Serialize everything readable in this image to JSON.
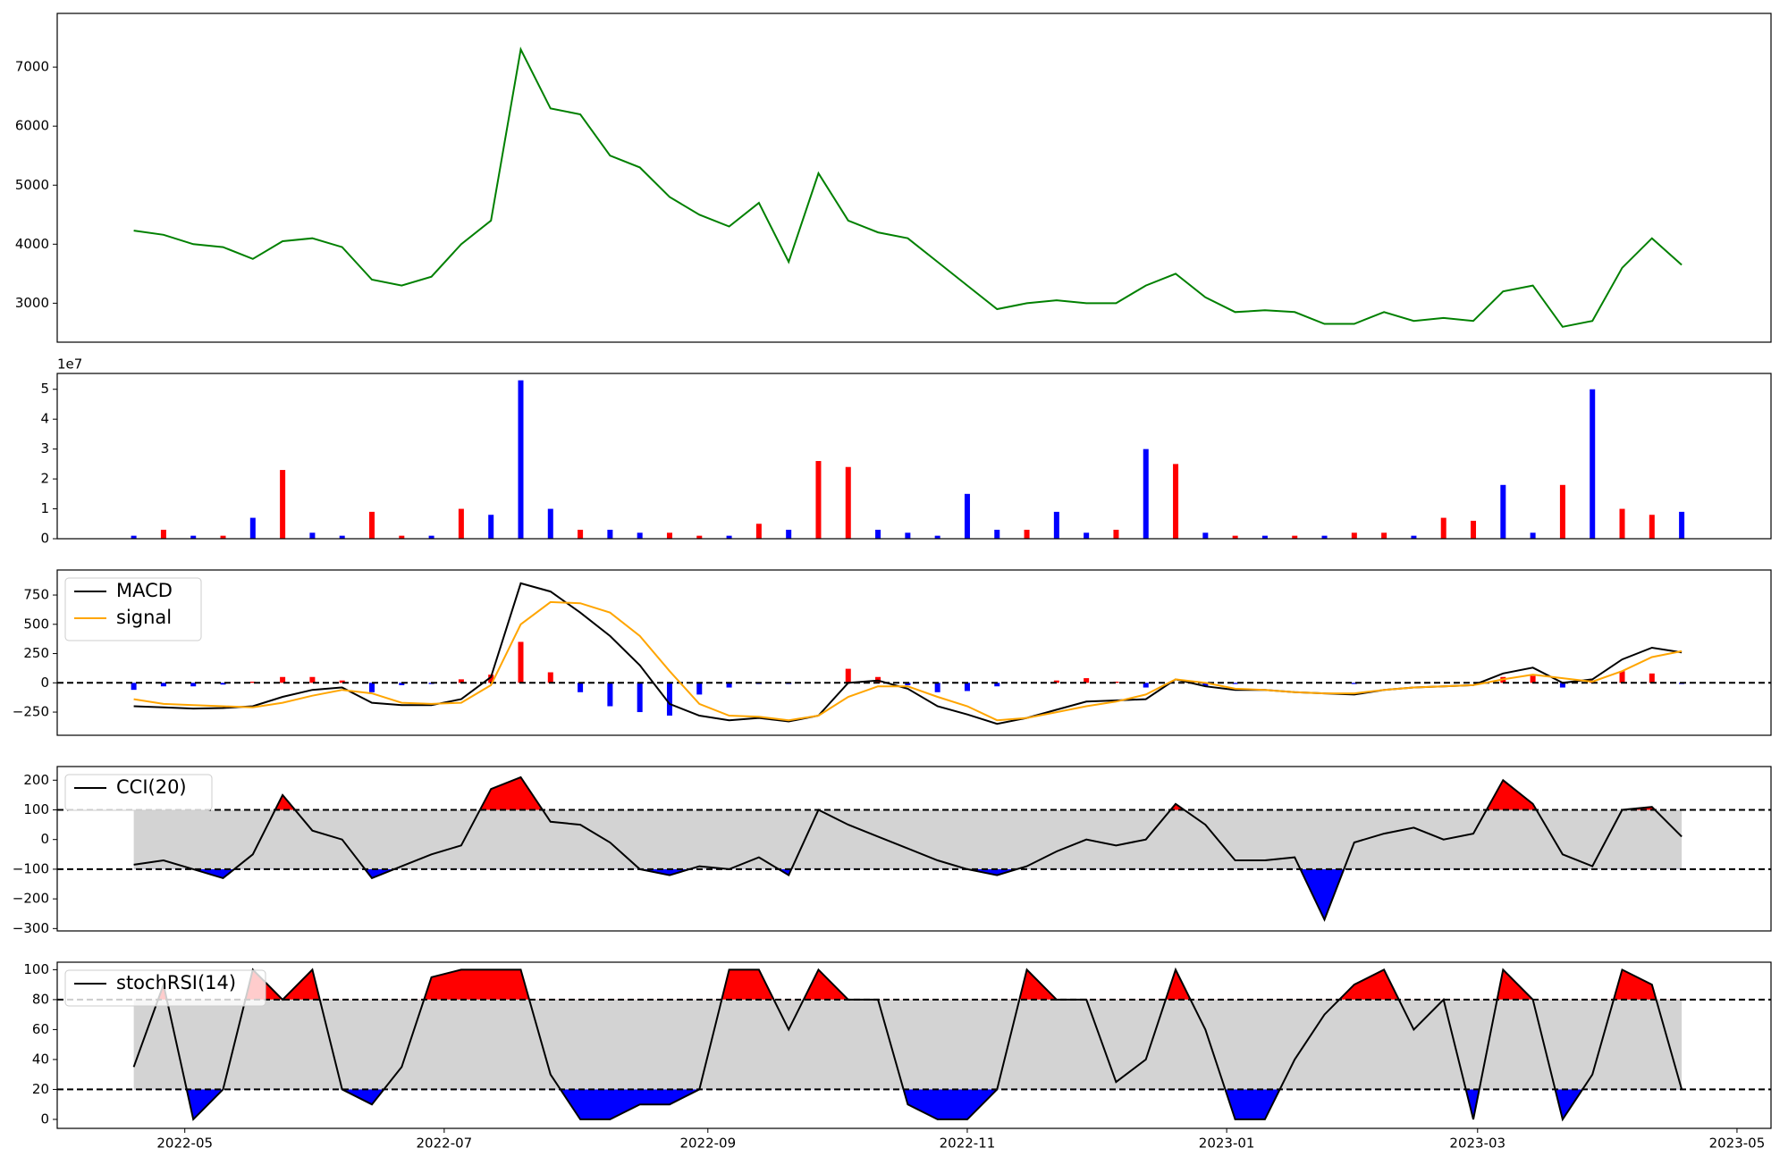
{
  "chart_data": [
    {
      "type": "line",
      "color": "#008000",
      "values": [
        4230,
        4160,
        4000,
        3950,
        3750,
        4050,
        4100,
        3950,
        3400,
        3300,
        3450,
        4000,
        4400,
        7300,
        6300,
        6200,
        5500,
        5300,
        4800,
        4500,
        4300,
        4700,
        3700,
        5200,
        4400,
        4200,
        4100,
        3700,
        3300,
        2900,
        3000,
        3050,
        3000,
        3000,
        3300,
        3500,
        3100,
        2850,
        2880,
        2850,
        2650,
        2650,
        2850,
        2700,
        2750,
        2700,
        3200,
        3300,
        2600,
        2700,
        3600,
        4100,
        3650
      ],
      "ylim": [
        2340,
        7910
      ],
      "yticks": [
        3000,
        4000,
        5000,
        6000,
        7000
      ]
    },
    {
      "type": "bar",
      "offset_label": "1e7",
      "values": [
        0.1,
        0.3,
        0.1,
        0.1,
        0.7,
        2.3,
        0.2,
        0.1,
        0.9,
        0.1,
        0.1,
        1.0,
        0.8,
        5.3,
        1.0,
        0.3,
        0.3,
        0.2,
        0.2,
        0.1,
        0.1,
        0.5,
        0.3,
        2.6,
        2.4,
        0.3,
        0.2,
        0.1,
        1.5,
        0.3,
        0.3,
        0.9,
        0.2,
        0.3,
        3.0,
        2.5,
        0.2,
        0.1,
        0.1,
        0.1,
        0.1,
        0.2,
        0.2,
        0.1,
        0.7,
        0.6,
        1.8,
        0.2,
        1.8,
        5.0,
        1.0,
        0.8,
        0.9
      ],
      "colors": [
        "blue",
        "red",
        "blue",
        "red",
        "blue",
        "red",
        "blue",
        "blue",
        "red",
        "red",
        "blue",
        "red",
        "blue",
        "blue",
        "blue",
        "red",
        "blue",
        "blue",
        "red",
        "red",
        "blue",
        "red",
        "blue",
        "red",
        "red",
        "blue",
        "blue",
        "blue",
        "blue",
        "blue",
        "red",
        "blue",
        "blue",
        "red",
        "blue",
        "red",
        "blue",
        "red",
        "blue",
        "red",
        "blue",
        "red",
        "red",
        "blue",
        "red",
        "red",
        "blue",
        "blue",
        "red",
        "blue",
        "red",
        "red",
        "blue"
      ],
      "ylim": [
        0,
        5.53
      ],
      "yticks": [
        0,
        1,
        2,
        3,
        4,
        5
      ]
    },
    {
      "type": "macd",
      "legend": "upper left",
      "hlines": [
        0
      ],
      "pos_color": "#ff0000",
      "neg_color": "#0000ff",
      "series": [
        {
          "name": "MACD",
          "color": "#000000",
          "values": [
            -200,
            -210,
            -220,
            -215,
            -200,
            -120,
            -60,
            -40,
            -170,
            -190,
            -190,
            -140,
            50,
            850,
            780,
            600,
            400,
            150,
            -180,
            -280,
            -320,
            -300,
            -330,
            -280,
            0,
            20,
            -50,
            -200,
            -270,
            -350,
            -300,
            -230,
            -160,
            -150,
            -140,
            30,
            -30,
            -60,
            -60,
            -80,
            -90,
            -100,
            -60,
            -40,
            -30,
            -20,
            80,
            130,
            0,
            30,
            200,
            300,
            260
          ]
        },
        {
          "name": "signal",
          "color": "#ffa500",
          "values": [
            -140,
            -180,
            -190,
            -200,
            -210,
            -170,
            -110,
            -60,
            -90,
            -170,
            -180,
            -170,
            -20,
            500,
            690,
            680,
            600,
            400,
            100,
            -180,
            -280,
            -290,
            -320,
            -280,
            -120,
            -30,
            -30,
            -120,
            -200,
            -320,
            -300,
            -250,
            -200,
            -160,
            -100,
            30,
            0,
            -50,
            -60,
            -80,
            -90,
            -90,
            -60,
            -40,
            -30,
            -20,
            30,
            70,
            40,
            10,
            100,
            220,
            270
          ]
        }
      ],
      "histogram": [
        -60,
        -30,
        -30,
        -15,
        10,
        50,
        50,
        20,
        -80,
        -20,
        -10,
        30,
        70,
        350,
        90,
        -80,
        -200,
        -250,
        -280,
        -100,
        -40,
        -10,
        -10,
        0,
        120,
        50,
        -20,
        -80,
        -70,
        -30,
        0,
        20,
        40,
        10,
        -40,
        0,
        -30,
        -10,
        0,
        0,
        0,
        -10,
        0,
        0,
        0,
        0,
        50,
        60,
        -40,
        20,
        100,
        80,
        -10
      ],
      "ylim": [
        -448,
        964
      ],
      "yticks": [
        {
          "value": -250,
          "label": "−250"
        },
        0,
        250,
        500,
        750
      ]
    },
    {
      "type": "oscillator",
      "legend": "upper left",
      "hlines": [
        -100,
        100
      ],
      "band_color": "#d3d3d3",
      "pos_color": "#ff0000",
      "neg_color": "#0000ff",
      "series": [
        {
          "name": "CCI(20)",
          "color": "#000000",
          "values": [
            -85,
            -70,
            -100,
            -130,
            -50,
            150,
            30,
            0,
            -130,
            -90,
            -50,
            -20,
            170,
            210,
            60,
            50,
            -10,
            -100,
            -120,
            -90,
            -100,
            -60,
            -120,
            100,
            50,
            10,
            -30,
            -70,
            -100,
            -120,
            -90,
            -40,
            0,
            -20,
            0,
            120,
            50,
            -70,
            -70,
            -60,
            -270,
            -10,
            20,
            40,
            0,
            20,
            200,
            120,
            -50,
            -90,
            100,
            110,
            10
          ]
        }
      ],
      "ylim": [
        -308,
        246
      ],
      "yticks": [
        {
          "value": -300,
          "label": "−300"
        },
        {
          "value": -200,
          "label": "−200"
        },
        {
          "value": -100,
          "label": "−100"
        },
        0,
        100,
        200
      ]
    },
    {
      "type": "oscillator",
      "legend": "upper left",
      "hlines": [
        20,
        80
      ],
      "band_color": "#d3d3d3",
      "pos_color": "#ff0000",
      "neg_color": "#0000ff",
      "series": [
        {
          "name": "stochRSI(14)",
          "color": "#000000",
          "values": [
            35,
            90,
            0,
            20,
            100,
            80,
            100,
            20,
            10,
            35,
            95,
            100,
            100,
            100,
            30,
            0,
            0,
            10,
            10,
            20,
            100,
            100,
            60,
            100,
            80,
            80,
            10,
            0,
            0,
            20,
            100,
            80,
            80,
            25,
            40,
            100,
            60,
            0,
            0,
            40,
            70,
            90,
            100,
            60,
            80,
            0,
            100,
            80,
            0,
            30,
            100,
            90,
            20
          ]
        }
      ],
      "ylim": [
        -6,
        105
      ],
      "yticks": [
        0,
        20,
        40,
        60,
        80,
        100
      ],
      "x": [
        19101,
        19108,
        19115,
        19122,
        19129,
        19136,
        19143,
        19150,
        19157,
        19164,
        19171,
        19178,
        19185,
        19192,
        19199,
        19206,
        19213,
        19220,
        19227,
        19234,
        19241,
        19248,
        19255,
        19262,
        19269,
        19276,
        19283,
        19290,
        19297,
        19304,
        19311,
        19318,
        19325,
        19332,
        19339,
        19346,
        19353,
        19360,
        19367,
        19374,
        19381,
        19388,
        19395,
        19402,
        19409,
        19416,
        19423,
        19430,
        19437,
        19444,
        19451,
        19458,
        19465
      ],
      "xlim": [
        19083,
        19486
      ],
      "xticks": [
        {
          "value": 19113,
          "label": "2022-05"
        },
        {
          "value": 19174,
          "label": "2022-07"
        },
        {
          "value": 19236,
          "label": "2022-09"
        },
        {
          "value": 19297,
          "label": "2022-11"
        },
        {
          "value": 19358,
          "label": "2023-01"
        },
        {
          "value": 19417,
          "label": "2023-03"
        },
        {
          "value": 19478,
          "label": "2023-05"
        }
      ]
    }
  ]
}
